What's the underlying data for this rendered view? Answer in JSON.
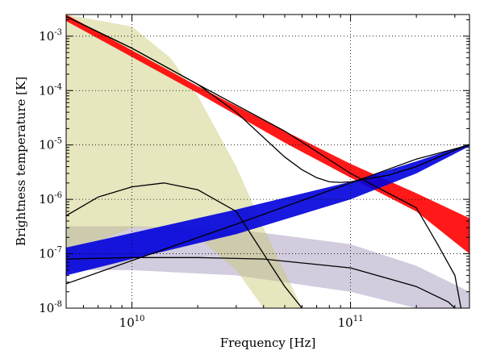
{
  "chart_data": {
    "type": "line",
    "xlabel": "Frequency [Hz]",
    "ylabel": "Brightness temperature [K]",
    "x_scale": "log",
    "y_scale": "log",
    "xlim": [
      5000000000.0,
      350000000000.0
    ],
    "ylim": [
      1e-08,
      0.0025
    ],
    "grid": true,
    "x_ticks": [
      {
        "value": 10000000000.0,
        "base": "10",
        "exp": "10"
      },
      {
        "value": 100000000000.0,
        "base": "10",
        "exp": "11"
      }
    ],
    "y_ticks": [
      {
        "value": 0.001,
        "base": "10",
        "exp": "-3"
      },
      {
        "value": 0.0001,
        "base": "10",
        "exp": "-4"
      },
      {
        "value": 1e-05,
        "base": "10",
        "exp": "-5"
      },
      {
        "value": 1e-06,
        "base": "10",
        "exp": "-6"
      },
      {
        "value": 1e-07,
        "base": "10",
        "exp": "-7"
      },
      {
        "value": 1e-08,
        "base": "10",
        "exp": "-8"
      }
    ],
    "bands": [
      {
        "color": "#9b8fb5",
        "points": [
          [
            5000000000.0,
            3.2e-07,
            5e-08
          ],
          [
            10000000000.0,
            3.2e-07,
            5e-08
          ],
          [
            30000000000.0,
            2.8e-07,
            4e-08
          ],
          [
            100000000000.0,
            1.5e-07,
            2e-08
          ],
          [
            200000000000.0,
            6e-08,
            1e-08
          ],
          [
            350000000000.0,
            2e-08,
            1e-08
          ]
        ]
      },
      {
        "color": "#c8c870",
        "points": [
          [
            5000000000.0,
            0.0025,
            1e-07
          ],
          [
            10000000000.0,
            0.0015,
            3e-07
          ],
          [
            15000000000.0,
            0.0004,
            3e-07
          ],
          [
            20000000000.0,
            8e-05,
            2e-07
          ],
          [
            30000000000.0,
            4e-06,
            5e-08
          ],
          [
            40000000000.0,
            3e-07,
            1e-08
          ],
          [
            60000000000.0,
            1e-08,
            1e-08
          ]
        ]
      },
      {
        "color": "#ff0000",
        "points": [
          [
            5000000000.0,
            0.0025,
            0.0019
          ],
          [
            20000000000.0,
            0.00012,
            9e-05
          ],
          [
            50000000000.0,
            1.8e-05,
            1.1e-05
          ],
          [
            100000000000.0,
            4.5e-06,
            2.5e-06
          ],
          [
            200000000000.0,
            1.3e-06,
            6e-07
          ],
          [
            350000000000.0,
            4.5e-07,
            1e-07
          ]
        ]
      },
      {
        "color": "#0000dd",
        "points": [
          [
            5000000000.0,
            1.3e-07,
            4e-08
          ],
          [
            10000000000.0,
            2.4e-07,
            8e-08
          ],
          [
            30000000000.0,
            6.5e-07,
            2.3e-07
          ],
          [
            100000000000.0,
            2.1e-06,
            1e-06
          ],
          [
            200000000000.0,
            5e-06,
            3e-06
          ],
          [
            350000000000.0,
            1.05e-05,
            9.5e-06
          ]
        ]
      }
    ],
    "series": [
      {
        "color": "#000000",
        "points": [
          [
            5000000000.0,
            0.0023
          ],
          [
            10000000000.0,
            0.0006
          ],
          [
            20000000000.0,
            0.00013
          ],
          [
            30000000000.0,
            4e-05
          ],
          [
            50000000000.0,
            6e-06
          ],
          [
            60000000000.0,
            3.5e-06
          ],
          [
            70000000000.0,
            2.5e-06
          ],
          [
            80000000000.0,
            2.1e-06
          ],
          [
            90000000000.0,
            2.05e-06
          ],
          [
            100000000000.0,
            2.1e-06
          ],
          [
            150000000000.0,
            2.8e-06
          ],
          [
            200000000000.0,
            4e-06
          ],
          [
            300000000000.0,
            8e-06
          ],
          [
            350000000000.0,
            1e-05
          ]
        ]
      },
      {
        "color": "#000000",
        "points": [
          [
            5000000000.0,
            0.0023
          ],
          [
            10000000000.0,
            0.0006
          ],
          [
            20000000000.0,
            0.00013
          ],
          [
            50000000000.0,
            1.8e-05
          ],
          [
            100000000000.0,
            3e-06
          ],
          [
            200000000000.0,
            7e-07
          ],
          [
            250000000000.0,
            1.5e-07
          ],
          [
            300000000000.0,
            4e-08
          ],
          [
            320000000000.0,
            1e-08
          ]
        ]
      },
      {
        "color": "#000000",
        "points": [
          [
            5000000000.0,
            2.8e-08
          ],
          [
            10000000000.0,
            7.5e-08
          ],
          [
            30000000000.0,
            3.5e-07
          ],
          [
            100000000000.0,
            2e-06
          ],
          [
            200000000000.0,
            5.5e-06
          ],
          [
            350000000000.0,
            1e-05
          ]
        ]
      },
      {
        "color": "#000000",
        "points": [
          [
            5000000000.0,
            5e-07
          ],
          [
            7000000000.0,
            1.1e-06
          ],
          [
            10000000000.0,
            1.7e-06
          ],
          [
            14000000000.0,
            2e-06
          ],
          [
            20000000000.0,
            1.5e-06
          ],
          [
            30000000000.0,
            6e-07
          ],
          [
            40000000000.0,
            1e-07
          ],
          [
            50000000000.0,
            2.5e-08
          ],
          [
            60000000000.0,
            1e-08
          ]
        ]
      },
      {
        "color": "#000000",
        "points": [
          [
            5000000000.0,
            8e-08
          ],
          [
            10000000000.0,
            8.5e-08
          ],
          [
            20000000000.0,
            8.5e-08
          ],
          [
            40000000000.0,
            8e-08
          ],
          [
            100000000000.0,
            5.5e-08
          ],
          [
            200000000000.0,
            2.5e-08
          ],
          [
            280000000000.0,
            1.3e-08
          ],
          [
            300000000000.0,
            1e-08
          ]
        ]
      }
    ]
  }
}
